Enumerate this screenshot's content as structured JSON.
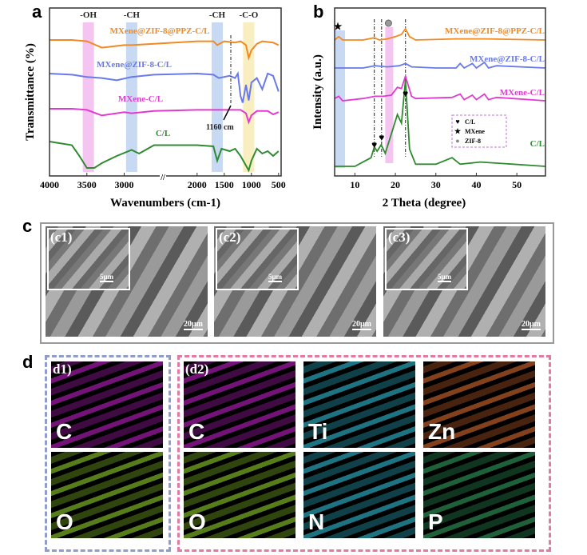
{
  "panels": {
    "a": "a",
    "b": "b",
    "c": "c",
    "d": "d"
  },
  "chart_data": [
    {
      "type": "line",
      "title": "",
      "xlabel": "Wavenumbers (cm-1)",
      "ylabel": "Transmittance (%)",
      "xlim": [
        4000,
        500
      ],
      "xticks": [
        "4000",
        "3500",
        "3000",
        "2000",
        "1500",
        "1000",
        "500"
      ],
      "bands": [
        {
          "label": "-OH",
          "center": 3480,
          "color": "#f3b6ef"
        },
        {
          "label": "-CH",
          "center": 2900,
          "color": "#b9cff0"
        },
        {
          "label": "-CH",
          "center": 1630,
          "color": "#b9cff0"
        },
        {
          "label": "-C-O",
          "center": 1050,
          "color": "#f7eab0"
        }
      ],
      "annotation": "1160 cm",
      "series": [
        {
          "name": "MXene@ZIF-8@PPZ-C/L",
          "color": "#f08a24",
          "x": [
            4000,
            3700,
            3500,
            3300,
            3000,
            2900,
            2600,
            2000,
            1700,
            1630,
            1500,
            1300,
            1200,
            1100,
            1050,
            1000,
            900,
            800,
            600,
            500
          ],
          "y": [
            0,
            0,
            -1,
            -6,
            -4,
            -4,
            -3,
            -1,
            -1,
            -4,
            -1,
            -2,
            -1,
            -4,
            -14,
            -8,
            -3,
            -1,
            -2,
            -4
          ]
        },
        {
          "name": "MXene@ZIF-8-C/L",
          "color": "#6a7ae8",
          "x": [
            4000,
            3700,
            3500,
            3300,
            3100,
            2900,
            2600,
            2000,
            1700,
            1600,
            1400,
            1300,
            1250,
            1200,
            1160,
            1100,
            1050,
            1000,
            900,
            800,
            700,
            600,
            500
          ],
          "y": [
            0,
            -1,
            -3,
            -4,
            -6,
            -3,
            -1,
            0,
            -1,
            -4,
            -2,
            -4,
            0,
            -20,
            -26,
            -10,
            -24,
            -8,
            -4,
            -14,
            0,
            -2,
            -16
          ]
        },
        {
          "name": "MXene-C/L",
          "color": "#e23ad0",
          "x": [
            4000,
            3700,
            3500,
            3300,
            3000,
            2900,
            2600,
            2000,
            1700,
            1500,
            1200,
            1100,
            1050,
            1000,
            900,
            700,
            600,
            500
          ],
          "y": [
            0,
            0,
            -1,
            -6,
            -3,
            -4,
            -2,
            -1,
            -1,
            -1,
            -1,
            -4,
            -12,
            -6,
            -2,
            -2,
            -5,
            -3
          ]
        },
        {
          "name": "C/L",
          "color": "#2f8b2f",
          "x": [
            4000,
            3700,
            3600,
            3500,
            3400,
            3300,
            3100,
            2900,
            2800,
            2600,
            2000,
            1700,
            1630,
            1550,
            1400,
            1300,
            1200,
            1100,
            1050,
            1000,
            900,
            800,
            700,
            600,
            500
          ],
          "y": [
            0,
            -3,
            -12,
            -22,
            -22,
            -18,
            -12,
            -7,
            -10,
            -3,
            -3,
            -4,
            -16,
            -6,
            -8,
            -6,
            -12,
            -20,
            -24,
            -16,
            -6,
            -10,
            -8,
            -12,
            -8
          ]
        }
      ]
    },
    {
      "type": "line",
      "title": "",
      "xlabel": "2 Theta (degree)",
      "ylabel": "Intensity (a.u.)",
      "xlim": [
        5,
        57
      ],
      "xticks": [
        "10",
        "20",
        "30",
        "40",
        "50"
      ],
      "legend": {
        "placement": "center-right",
        "entries": [
          "C/L",
          "MXene",
          "ZIF-8"
        ]
      },
      "series": [
        {
          "name": "MXene@ZIF-8@PPZ-C/L",
          "color": "#f08a24",
          "x": [
            5,
            6,
            7,
            12,
            14.8,
            16,
            18,
            20,
            21.5,
            22.5,
            23.5,
            25,
            35,
            42,
            57
          ],
          "y": [
            0,
            3,
            0,
            0,
            2,
            0,
            1,
            3,
            5,
            10,
            3,
            0,
            1,
            1,
            0
          ]
        },
        {
          "name": "MXene@ZIF-8-C/L",
          "color": "#6a7ae8",
          "x": [
            5,
            12,
            15,
            18,
            21,
            22.5,
            24,
            30,
            35,
            36,
            37,
            39,
            40,
            42,
            43,
            45,
            57
          ],
          "y": [
            0,
            0,
            2,
            1,
            2,
            4,
            1,
            0,
            0,
            4,
            0,
            4,
            0,
            5,
            0,
            2,
            0
          ]
        },
        {
          "name": "MXene-C/L",
          "color": "#e23ad0",
          "x": [
            5,
            6,
            7,
            12,
            15,
            17,
            19,
            20.5,
            21.5,
            22.5,
            24,
            25,
            34,
            36,
            37,
            39,
            40,
            42,
            43,
            45,
            57
          ],
          "y": [
            2,
            4,
            0,
            2,
            4,
            4,
            5,
            12,
            11,
            22,
            4,
            2,
            3,
            6,
            1,
            5,
            1,
            6,
            1,
            3,
            0
          ]
        },
        {
          "name": "C/L",
          "color": "#2f8b2f",
          "x": [
            5,
            10,
            12,
            14,
            14.8,
            15.5,
            16.5,
            17.5,
            19,
            20.5,
            21.5,
            22.5,
            23.5,
            25,
            30,
            34,
            36,
            41,
            57
          ],
          "y": [
            0,
            0,
            2,
            4,
            9,
            7,
            10,
            6,
            15,
            24,
            20,
            40,
            8,
            1,
            1,
            4,
            1,
            2,
            0
          ]
        }
      ]
    }
  ],
  "plot_a": {
    "labels": [
      "MXene@ZIF-8@PPZ-C/L",
      "MXene@ZIF-8-C/L",
      "MXene-C/L",
      "C/L"
    ]
  },
  "panel_c": {
    "images": [
      {
        "tag": "(c1)",
        "inset_scale": "5μm",
        "scale": "20μm"
      },
      {
        "tag": "(c2)",
        "inset_scale": "5μm",
        "scale": "20μm"
      },
      {
        "tag": "(c3)",
        "inset_scale": "5μm",
        "scale": "20μm"
      }
    ]
  },
  "panel_d": {
    "d1_tag": "d1)",
    "d2_tag": "(d2)",
    "d1": [
      {
        "el": "C",
        "color": "#c020c8"
      },
      {
        "el": "O",
        "color": "#8fd02a"
      }
    ],
    "d2": [
      {
        "el": "C",
        "color": "#c020c8"
      },
      {
        "el": "Ti",
        "color": "#30c0d8"
      },
      {
        "el": "Zn",
        "color": "#d86a30"
      },
      {
        "el": "O",
        "color": "#8fd02a"
      },
      {
        "el": "N",
        "color": "#30c0d8"
      },
      {
        "el": "P",
        "color": "#30a060"
      }
    ]
  }
}
